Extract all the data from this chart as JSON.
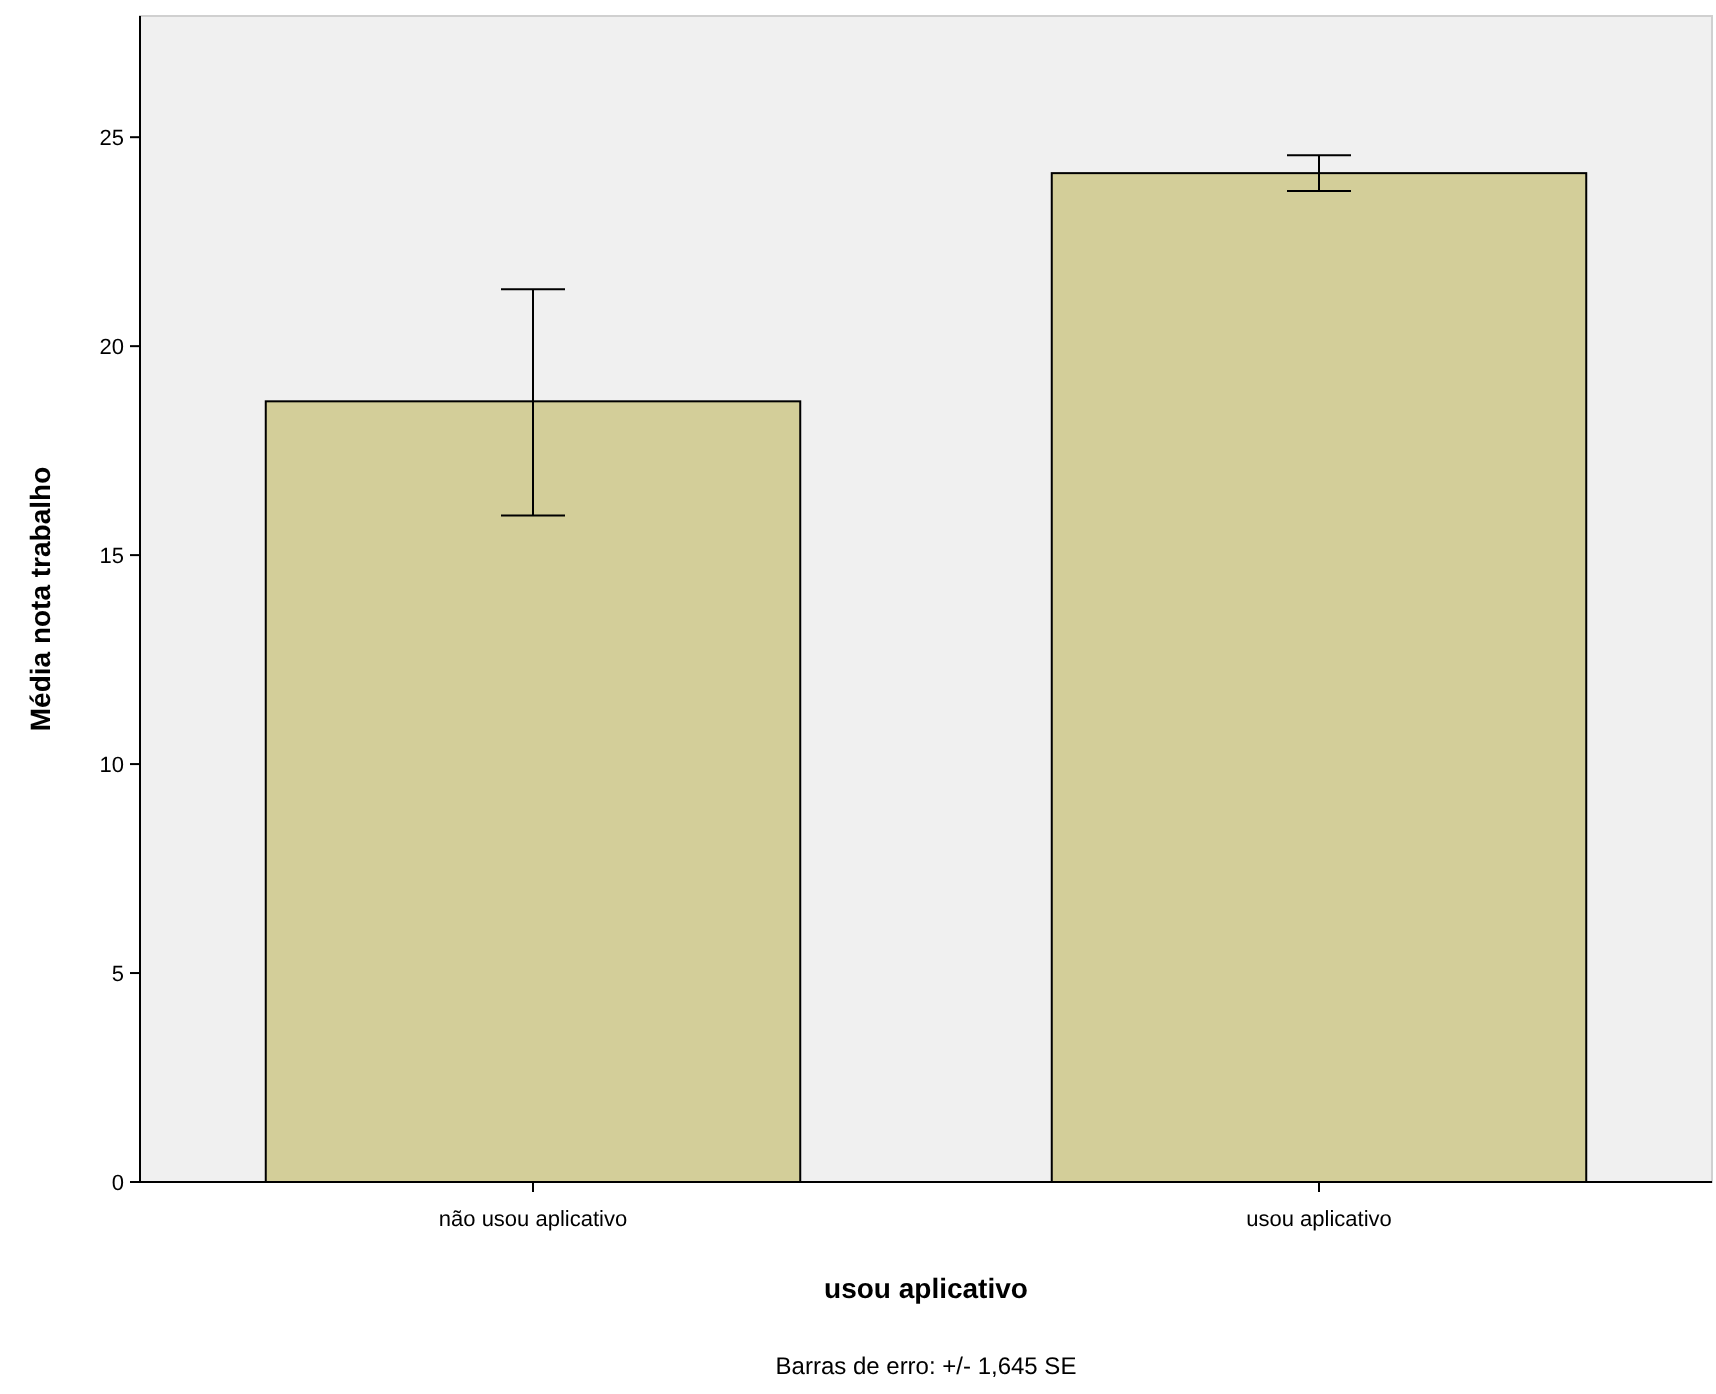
{
  "chart_data": {
    "type": "bar",
    "xlabel": "usou aplicativo",
    "ylabel": "Média nota trabalho",
    "categories": [
      "não usou aplicativo",
      "usou aplicativo"
    ],
    "values": [
      18.68,
      24.14
    ],
    "color": "#d3ce99",
    "errors": [
      [
        15.95,
        21.36
      ],
      [
        23.71,
        24.57
      ]
    ],
    "ylim": [
      0,
      27.9
    ],
    "yticks": [
      0,
      5,
      10,
      15,
      20,
      25
    ],
    "grid": false,
    "annotations": [
      "Barras de erro: +/- 1,645 SE"
    ]
  }
}
